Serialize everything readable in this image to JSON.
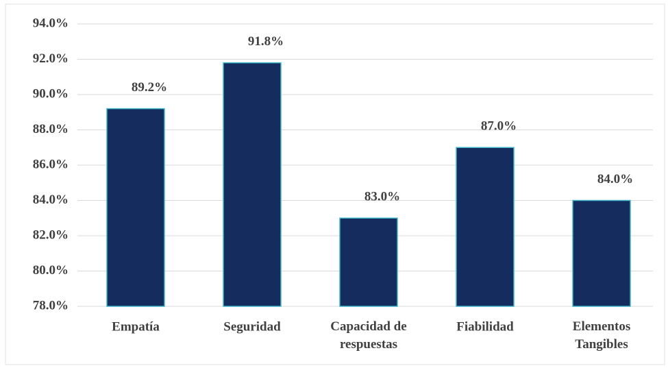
{
  "chart_data": {
    "type": "bar",
    "categories": [
      "Empatía",
      "Seguridad",
      "Capacidad de respuestas",
      "Fiabilidad",
      "Elementos Tangibles"
    ],
    "values": [
      89.2,
      91.8,
      83.0,
      87.0,
      84.0
    ],
    "value_labels": [
      "89.2%",
      "91.8%",
      "83.0%",
      "87.0%",
      "84.0%"
    ],
    "color": "#142d5e",
    "ylim": [
      78,
      94
    ],
    "yticks": [
      {
        "value": 78,
        "label": "78.0%"
      },
      {
        "value": 80,
        "label": "80.0%"
      },
      {
        "value": 82,
        "label": "82.0%"
      },
      {
        "value": 84,
        "label": "84.0%"
      },
      {
        "value": 86,
        "label": "86.0%"
      },
      {
        "value": 88,
        "label": "88.0%"
      },
      {
        "value": 90,
        "label": "90.0%"
      },
      {
        "value": 92,
        "label": "92.0%"
      },
      {
        "value": 94,
        "label": "94.0%"
      }
    ],
    "grid": true
  }
}
